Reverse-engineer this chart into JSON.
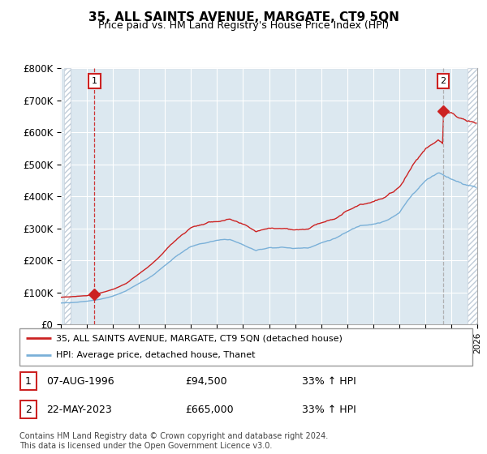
{
  "title": "35, ALL SAINTS AVENUE, MARGATE, CT9 5QN",
  "subtitle": "Price paid vs. HM Land Registry's House Price Index (HPI)",
  "ylim": [
    0,
    800000
  ],
  "yticks": [
    0,
    100000,
    200000,
    300000,
    400000,
    500000,
    600000,
    700000,
    800000
  ],
  "ytick_labels": [
    "£0",
    "£100K",
    "£200K",
    "£300K",
    "£400K",
    "£500K",
    "£600K",
    "£700K",
    "£800K"
  ],
  "xlim_start": 1994.25,
  "xlim_end": 2026.0,
  "hatch_left_end": 1994.75,
  "hatch_right_start": 2025.25,
  "hpi_color": "#7ab0d8",
  "price_color": "#cc2222",
  "point1_x": 1996.58,
  "point1_y": 94500,
  "point2_x": 2023.38,
  "point2_y": 665000,
  "vline1_color": "#cc2222",
  "vline2_color": "#aaaaaa",
  "annotation1": "1",
  "annotation2": "2",
  "legend_line1": "35, ALL SAINTS AVENUE, MARGATE, CT9 5QN (detached house)",
  "legend_line2": "HPI: Average price, detached house, Thanet",
  "table_row1_num": "1",
  "table_row1_date": "07-AUG-1996",
  "table_row1_price": "£94,500",
  "table_row1_hpi": "33% ↑ HPI",
  "table_row2_num": "2",
  "table_row2_date": "22-MAY-2023",
  "table_row2_price": "£665,000",
  "table_row2_hpi": "33% ↑ HPI",
  "footnote": "Contains HM Land Registry data © Crown copyright and database right 2024.\nThis data is licensed under the Open Government Licence v3.0.",
  "plot_bg": "#dce8f0",
  "grid_color": "#ffffff",
  "fig_bg": "#ffffff"
}
